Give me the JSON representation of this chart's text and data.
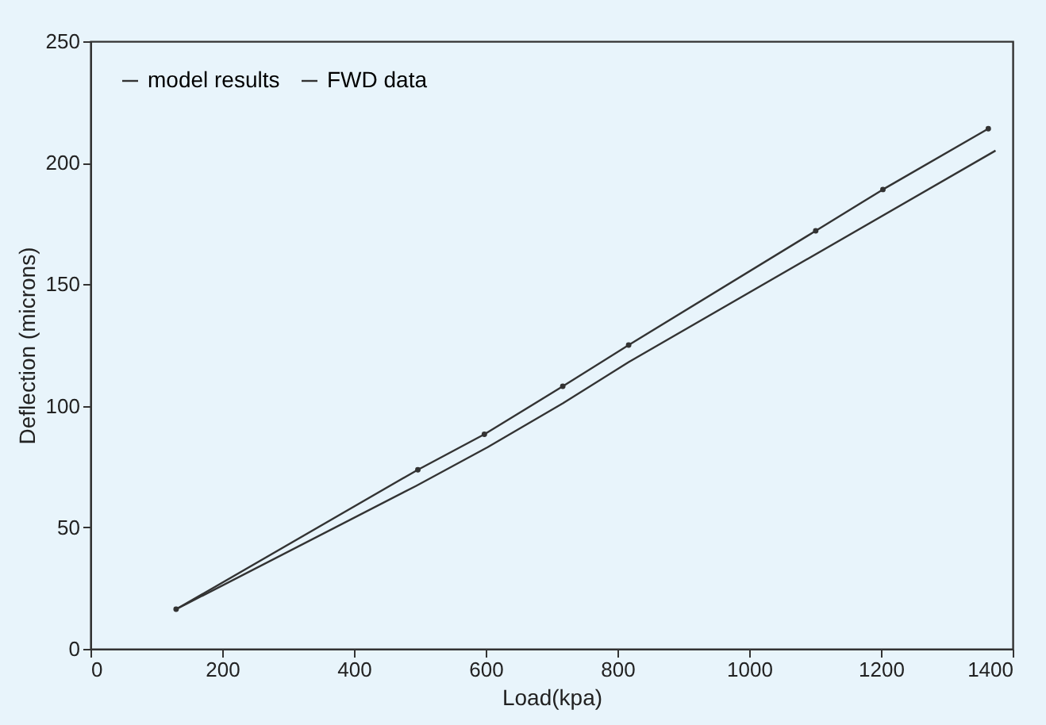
{
  "chart_data": {
    "type": "line",
    "xlabel": "Load(kpa)",
    "ylabel": "Deflection (microns)",
    "xlim": [
      0,
      1400
    ],
    "xticks": [
      0,
      200,
      400,
      600,
      800,
      1000,
      1200,
      1400
    ],
    "ylim": [
      0,
      250
    ],
    "yticks": [
      0,
      50,
      100,
      150,
      200,
      250
    ],
    "grid": false,
    "legend": "top left",
    "series": [
      {
        "name": "model results",
        "color": "#333333",
        "marker": "circle",
        "x": [
          130,
          497,
          598,
          717,
          817,
          1101,
          1203,
          1363
        ],
        "values": [
          16.3,
          73.7,
          88.3,
          108,
          125,
          172,
          189,
          214
        ]
      },
      {
        "name": "FWD data",
        "color": "#333333",
        "marker": "none",
        "x": [
          130,
          494,
          603,
          717,
          817,
          1374
        ],
        "values": [
          16.3,
          67,
          83,
          101,
          118,
          205
        ]
      }
    ]
  }
}
